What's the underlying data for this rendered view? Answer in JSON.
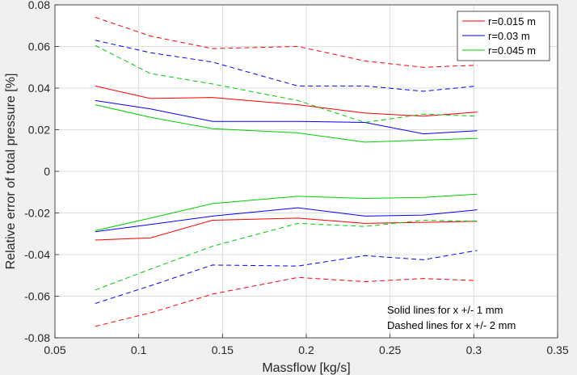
{
  "chart_data": {
    "type": "line",
    "title": "",
    "xlabel": "Massflow [kg/s]",
    "ylabel": "Relative error of total pressure [%]",
    "xlim": [
      0.05,
      0.35
    ],
    "ylim": [
      -0.08,
      0.08
    ],
    "xticks": [
      0.05,
      0.1,
      0.15,
      0.2,
      0.25,
      0.3,
      0.35
    ],
    "xtick_labels": [
      "0.05",
      "0.1",
      "0.15",
      "0.2",
      "0.25",
      "0.3",
      "0.35"
    ],
    "yticks": [
      -0.08,
      -0.06,
      -0.04,
      -0.02,
      0,
      0.02,
      0.04,
      0.06,
      0.08
    ],
    "ytick_labels": [
      "-0.08",
      "-0.06",
      "-0.04",
      "-0.02",
      "0",
      "0.02",
      "0.04",
      "0.06",
      "0.08"
    ],
    "grid": true,
    "legend_position": "top-right",
    "legend": [
      {
        "name": "r=0.015 m",
        "color": "#ff0000"
      },
      {
        "name": "r=0.03 m",
        "color": "#0000ff"
      },
      {
        "name": "r=0.045 m",
        "color": "#00cc00"
      }
    ],
    "x": [
      0.074,
      0.107,
      0.144,
      0.195,
      0.235,
      0.27,
      0.302
    ],
    "series": [
      {
        "name": "r=0.015 m",
        "style": "solid",
        "color": "#ff0000",
        "values": [
          0.041,
          0.035,
          0.0355,
          0.032,
          0.028,
          0.0265,
          0.0285
        ]
      },
      {
        "name": "r=0.015 m",
        "style": "solid",
        "color": "#ff0000",
        "values": [
          -0.033,
          -0.032,
          -0.0235,
          -0.0225,
          -0.025,
          -0.0245,
          -0.024
        ]
      },
      {
        "name": "r=0.015 m",
        "style": "dashed",
        "color": "#ff0000",
        "values": [
          0.074,
          0.065,
          0.059,
          0.06,
          0.053,
          0.05,
          0.051
        ]
      },
      {
        "name": "r=0.015 m",
        "style": "dashed",
        "color": "#ff0000",
        "values": [
          -0.0745,
          -0.068,
          -0.059,
          -0.051,
          -0.053,
          -0.0515,
          -0.0525
        ]
      },
      {
        "name": "r=0.03 m",
        "style": "solid",
        "color": "#0000ff",
        "values": [
          0.034,
          0.03,
          0.024,
          0.024,
          0.0235,
          0.018,
          0.0195
        ]
      },
      {
        "name": "r=0.03 m",
        "style": "solid",
        "color": "#0000ff",
        "values": [
          -0.029,
          -0.0255,
          -0.0215,
          -0.0175,
          -0.0215,
          -0.021,
          -0.0185
        ]
      },
      {
        "name": "r=0.03 m",
        "style": "dashed",
        "color": "#0000ff",
        "values": [
          0.063,
          0.057,
          0.0525,
          0.041,
          0.041,
          0.0385,
          0.041
        ]
      },
      {
        "name": "r=0.03 m",
        "style": "dashed",
        "color": "#0000ff",
        "values": [
          -0.0635,
          -0.055,
          -0.045,
          -0.0455,
          -0.0405,
          -0.0425,
          -0.038
        ]
      },
      {
        "name": "r=0.045 m",
        "style": "solid",
        "color": "#00cc00",
        "values": [
          0.032,
          0.026,
          0.0205,
          0.0185,
          0.014,
          0.015,
          0.0158
        ]
      },
      {
        "name": "r=0.045 m",
        "style": "solid",
        "color": "#00cc00",
        "values": [
          -0.0285,
          -0.0225,
          -0.0155,
          -0.012,
          -0.013,
          -0.0125,
          -0.011
        ]
      },
      {
        "name": "r=0.045 m",
        "style": "dashed",
        "color": "#00cc00",
        "values": [
          0.0605,
          0.047,
          0.042,
          0.034,
          0.0235,
          0.0275,
          0.0265
        ]
      },
      {
        "name": "r=0.045 m",
        "style": "dashed",
        "color": "#00cc00",
        "values": [
          -0.057,
          -0.047,
          -0.036,
          -0.025,
          -0.0265,
          -0.0235,
          -0.024
        ]
      }
    ],
    "annotations": [
      "Solid lines for x +/- 1 mm",
      "Dashed lines for x +/- 2 mm"
    ]
  }
}
